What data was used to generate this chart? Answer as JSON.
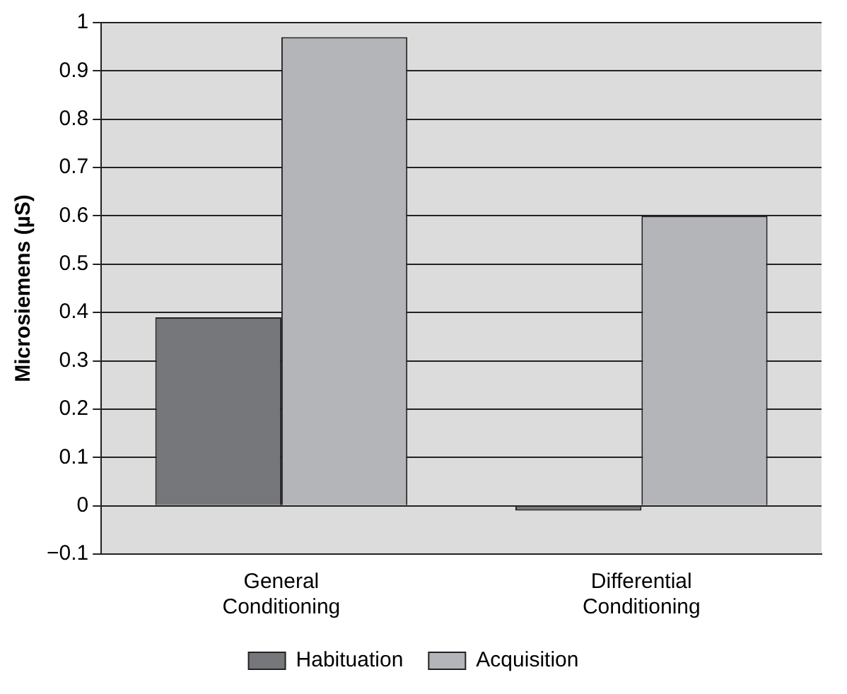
{
  "chart_data": {
    "type": "bar",
    "ylabel": "Microsiemens (µS)",
    "categories": [
      "General Conditioning",
      "Differential Conditioning"
    ],
    "series": [
      {
        "name": "Habituation",
        "color": "#76777a",
        "values": [
          0.39,
          -0.01
        ]
      },
      {
        "name": "Acquisition",
        "color": "#b4b5b8",
        "values": [
          0.97,
          0.6
        ]
      }
    ],
    "ylim": [
      -0.1,
      1
    ],
    "yticks": [
      {
        "value": -0.1,
        "label": "−0.1"
      },
      0,
      0.1,
      0.2,
      0.3,
      0.4,
      0.5,
      0.6,
      0.7,
      0.8,
      0.9,
      1
    ],
    "grid": "y",
    "legend": "bottom"
  }
}
